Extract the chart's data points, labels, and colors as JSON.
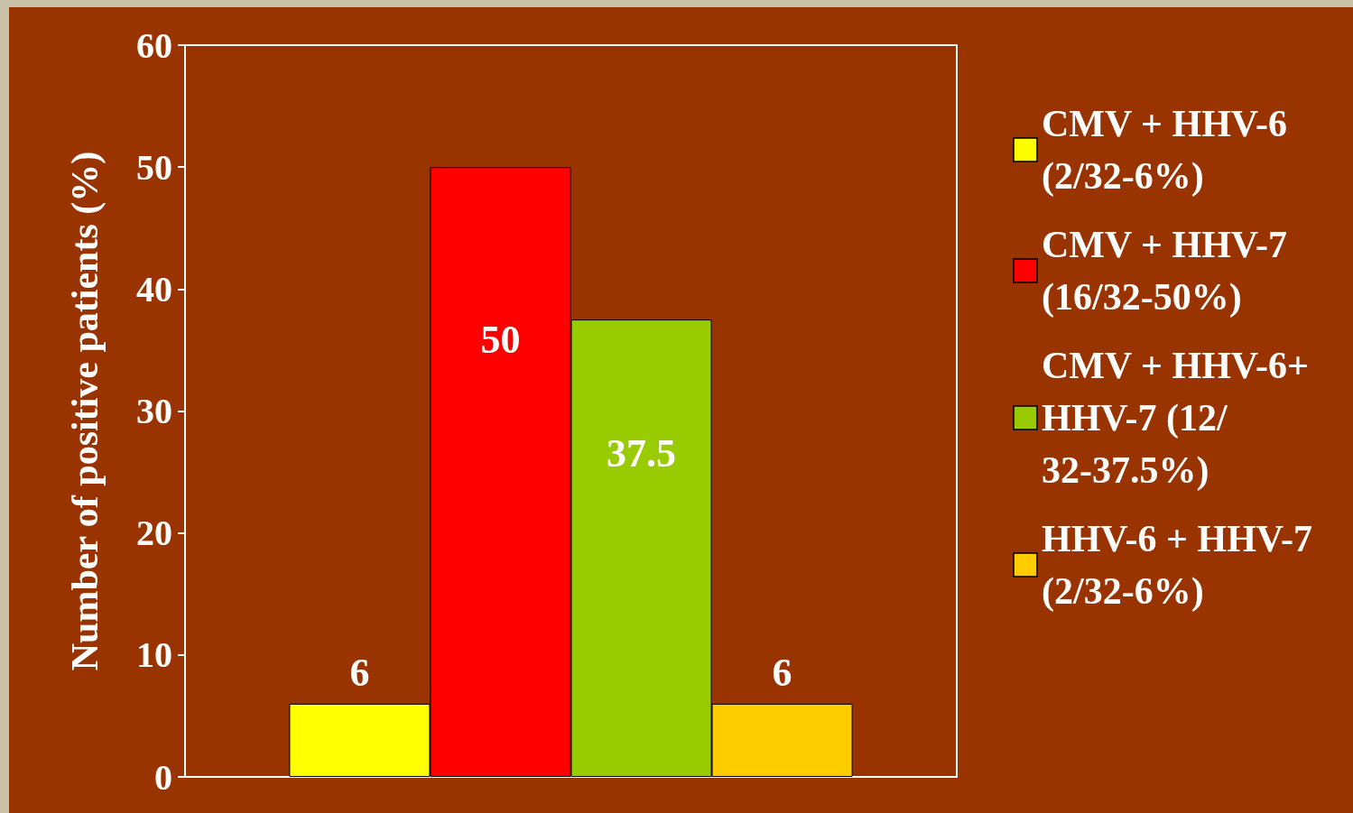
{
  "chart_data": {
    "type": "bar",
    "ylabel": "Number of positive patients (%)",
    "categories": [
      null
    ],
    "series": [
      {
        "name": "CMV + HHV-6 (2/32-6%)",
        "color": "#ffff00",
        "values": [
          6
        ]
      },
      {
        "name": "CMV + HHV-7 (16/32-50%)",
        "color": "#ff0000",
        "values": [
          50
        ]
      },
      {
        "name": "CMV + HHV-6+ HHV-7 (12/32-37.5%)",
        "color": "#99cc00",
        "values": [
          37.5
        ]
      },
      {
        "name": "HHV-6 + HHV-7 (2/32-6%)",
        "color": "#ffcc00",
        "values": [
          6
        ]
      }
    ],
    "ylim": [
      0,
      60
    ],
    "yticks": [
      0,
      10,
      20,
      30,
      40,
      50,
      60
    ],
    "data_labels": true,
    "legend": "right",
    "grid": false
  }
}
